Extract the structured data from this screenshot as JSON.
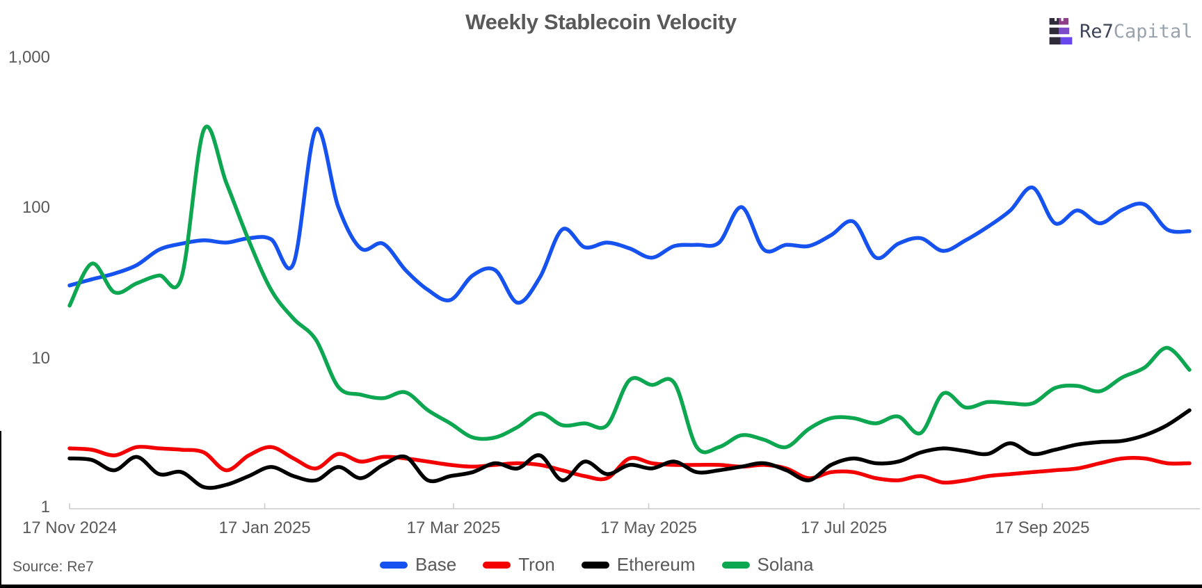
{
  "title": "Weekly Stablecoin Velocity",
  "brand": {
    "primary": "Re7",
    "secondary": "Capital",
    "logo_dark": "#2f2b38",
    "logo_purple_top": "#8f3f8a",
    "logo_purple_mid": "#7b49c9",
    "logo_purple_bottom": "#6847ec"
  },
  "source": {
    "label": "Source: Re7"
  },
  "y_axis": {
    "scale": "log",
    "labels": [
      "1,000",
      "100",
      "10",
      "1"
    ]
  },
  "chart_data": {
    "type": "line",
    "title": "Weekly Stablecoin Velocity",
    "x_start": "2024-11-17",
    "x_interval": "weekly",
    "n_points": 51,
    "x_tick_labels": [
      "17 Nov 2024",
      "17 Jan 2025",
      "17 Mar 2025",
      "17 May 2025",
      "17 Jul 2025",
      "17 Sep 2025"
    ],
    "x_tick_dates": [
      "2024-11-17",
      "2025-01-17",
      "2025-03-17",
      "2025-05-17",
      "2025-07-17",
      "2025-09-17"
    ],
    "y_scale": "log",
    "ylim": [
      1,
      1000
    ],
    "grid": false,
    "legend_position": "bottom",
    "axis_color": "#c9c9c9",
    "series": [
      {
        "name": "Base",
        "color": "#1652f0",
        "values": [
          30,
          33,
          36,
          41,
          52,
          57,
          60,
          58,
          62,
          61,
          42,
          330,
          100,
          53,
          57,
          38,
          28,
          24,
          35,
          38,
          23,
          34,
          71,
          54,
          58,
          53,
          46,
          55,
          56,
          58,
          100,
          52,
          56,
          55,
          65,
          80,
          46,
          57,
          62,
          51,
          60,
          74,
          95,
          135,
          78,
          95,
          78,
          96,
          104,
          71,
          69
        ]
      },
      {
        "name": "Tron",
        "color": "#f40000",
        "values": [
          2.45,
          2.4,
          2.2,
          2.5,
          2.45,
          2.4,
          2.3,
          1.75,
          2.2,
          2.5,
          2.1,
          1.8,
          2.25,
          2.0,
          2.15,
          2.1,
          2.0,
          1.9,
          1.85,
          1.9,
          1.95,
          1.9,
          1.75,
          1.6,
          1.55,
          2.1,
          1.95,
          1.9,
          1.9,
          1.9,
          1.85,
          1.9,
          1.8,
          1.55,
          1.7,
          1.7,
          1.55,
          1.5,
          1.6,
          1.45,
          1.5,
          1.6,
          1.65,
          1.7,
          1.75,
          1.8,
          1.95,
          2.1,
          2.1,
          1.95,
          1.95
        ]
      },
      {
        "name": "Ethereum",
        "color": "#000000",
        "values": [
          2.1,
          2.05,
          1.75,
          2.15,
          1.65,
          1.7,
          1.35,
          1.4,
          1.6,
          1.84,
          1.6,
          1.5,
          1.84,
          1.55,
          1.9,
          2.15,
          1.5,
          1.6,
          1.7,
          1.95,
          1.8,
          2.2,
          1.5,
          2.0,
          1.65,
          1.9,
          1.8,
          2.0,
          1.7,
          1.75,
          1.85,
          1.95,
          1.75,
          1.5,
          1.9,
          2.1,
          1.95,
          2.0,
          2.3,
          2.45,
          2.35,
          2.25,
          2.65,
          2.25,
          2.4,
          2.6,
          2.7,
          2.75,
          3.0,
          3.5,
          4.4
        ]
      },
      {
        "name": "Solana",
        "color": "#0ca750",
        "values": [
          22,
          42,
          27,
          31,
          35,
          34,
          330,
          145,
          60,
          28,
          18,
          13,
          6.3,
          5.6,
          5.3,
          5.8,
          4.4,
          3.6,
          2.9,
          2.9,
          3.4,
          4.2,
          3.5,
          3.6,
          3.5,
          7.0,
          6.5,
          6.7,
          2.5,
          2.5,
          3.0,
          2.8,
          2.5,
          3.3,
          3.9,
          3.9,
          3.6,
          4.0,
          3.1,
          5.7,
          4.6,
          5.0,
          4.9,
          4.9,
          6.2,
          6.4,
          5.9,
          7.3,
          8.5,
          11.5,
          8.2
        ]
      }
    ]
  }
}
